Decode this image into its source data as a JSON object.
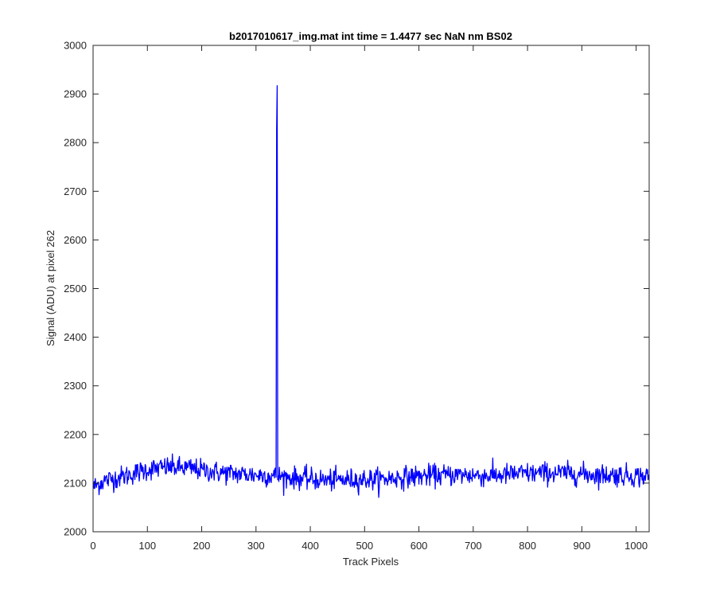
{
  "chart_data": {
    "type": "line",
    "title": "b2017010617_img.mat int time = 1.4477 sec  NaN nm BS02",
    "xlabel": "Track Pixels",
    "ylabel": "Signal (ADU) at pixel 262",
    "xlim": [
      0,
      1024
    ],
    "ylim": [
      2000,
      3000
    ],
    "xticks": [
      "0",
      "100",
      "200",
      "300",
      "400",
      "500",
      "600",
      "700",
      "800",
      "900",
      "1000"
    ],
    "yticks": [
      "2000",
      "2100",
      "2200",
      "2300",
      "2400",
      "2500",
      "2600",
      "2700",
      "2800",
      "2900",
      "3000"
    ],
    "grid": false,
    "series": [
      {
        "color": "#0000ff",
        "n_points": 1024,
        "x_start": 1,
        "baseline_profile": [
          [
            1,
            2092
          ],
          [
            20,
            2105
          ],
          [
            60,
            2115
          ],
          [
            100,
            2128
          ],
          [
            140,
            2133
          ],
          [
            180,
            2130
          ],
          [
            230,
            2122
          ],
          [
            280,
            2118
          ],
          [
            330,
            2115
          ],
          [
            380,
            2110
          ],
          [
            430,
            2106
          ],
          [
            480,
            2107
          ],
          [
            530,
            2108
          ],
          [
            580,
            2113
          ],
          [
            630,
            2116
          ],
          [
            680,
            2117
          ],
          [
            730,
            2115
          ],
          [
            780,
            2119
          ],
          [
            830,
            2121
          ],
          [
            880,
            2120
          ],
          [
            930,
            2117
          ],
          [
            980,
            2116
          ],
          [
            1024,
            2113
          ]
        ],
        "noise_std": 11,
        "spike": {
          "x": 339,
          "peak": 2917,
          "shoulder": 2825
        }
      }
    ]
  }
}
